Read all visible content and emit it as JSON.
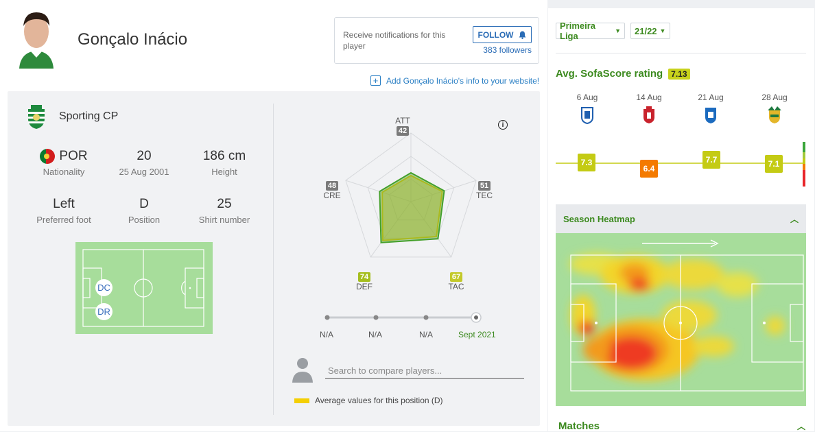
{
  "player": {
    "name": "Gonçalo Inácio",
    "club": "Sporting CP"
  },
  "notifications": {
    "text": "Receive notifications for this player",
    "follow_label": "FOLLOW",
    "followers_count": "383",
    "followers_label": "followers"
  },
  "add_info_link": "Add Gonçalo Inácio's info to your website!",
  "stats": {
    "nationality": {
      "value": "POR",
      "label": "Nationality"
    },
    "age": {
      "value": "20",
      "label": "25 Aug 2001"
    },
    "height": {
      "value": "186 cm",
      "label": "Height"
    },
    "foot": {
      "value": "Left",
      "label": "Preferred foot"
    },
    "position": {
      "value": "D",
      "label": "Position"
    },
    "shirt": {
      "value": "25",
      "label": "Shirt number"
    }
  },
  "positions": [
    "DC",
    "DR"
  ],
  "radar": {
    "attributes": [
      {
        "name": "ATT",
        "value": 42,
        "avg": 38,
        "color": "#7a7a7a"
      },
      {
        "name": "TEC",
        "value": 51,
        "avg": 48,
        "color": "#7a7a7a"
      },
      {
        "name": "TAC",
        "value": 67,
        "avg": 63,
        "color": "#c3c92a"
      },
      {
        "name": "DEF",
        "value": 74,
        "avg": 70,
        "color": "#a5be1e"
      },
      {
        "name": "CRE",
        "value": 48,
        "avg": 44,
        "color": "#7a7a7a"
      }
    ]
  },
  "timeline": {
    "points": [
      "N/A",
      "N/A",
      "N/A",
      "Sept 2021"
    ]
  },
  "compare": {
    "placeholder": "Search to compare players...",
    "legend": "Average values for this position (D)"
  },
  "filters": {
    "league": "Primeira Liga",
    "season": "21/22"
  },
  "avg_rating": {
    "title": "Avg. SofaScore rating",
    "value": "7.13"
  },
  "matches_ratings": [
    {
      "date": "6 Aug",
      "rating": "7.3",
      "color": "#c4cb14"
    },
    {
      "date": "14 Aug",
      "rating": "6.4",
      "color": "#f47a00"
    },
    {
      "date": "21 Aug",
      "rating": "7.7",
      "color": "#c4cb14"
    },
    {
      "date": "28 Aug",
      "rating": "7.1",
      "color": "#c4cb14"
    }
  ],
  "heatmap": {
    "title": "Season Heatmap"
  },
  "matches": {
    "title": "Matches"
  },
  "colors": {
    "accent_green": "#3c8a1f",
    "link_blue": "#2a7fc4",
    "pitch": "#a7dd9b"
  }
}
